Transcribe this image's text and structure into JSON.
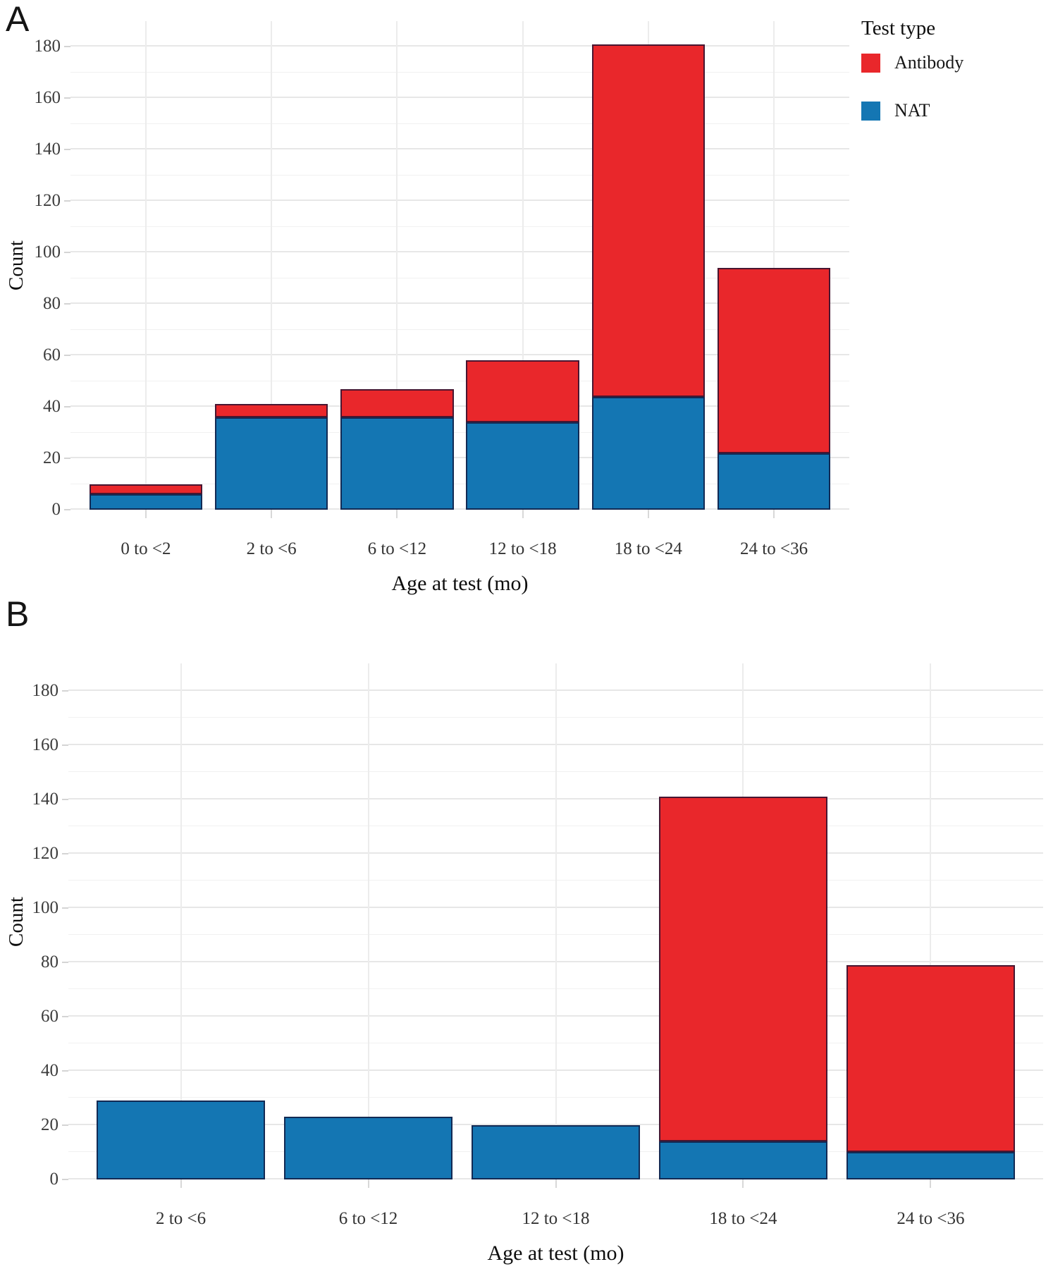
{
  "legend": {
    "title": "Test type",
    "items": [
      {
        "label": "Antibody",
        "color": "#e9272b"
      },
      {
        "label": "NAT",
        "color": "#1476b3"
      }
    ]
  },
  "chart_data": [
    {
      "type": "bar",
      "stacked": true,
      "panel_label": "A",
      "xlabel": "Age at test (mo)",
      "ylabel": "Count",
      "categories": [
        "0 to <2",
        "2 to <6",
        "6 to <12",
        "12 to <18",
        "18 to <24",
        "24 to <36"
      ],
      "series": [
        {
          "name": "NAT",
          "color": "#1476b3",
          "values": [
            6,
            36,
            36,
            34,
            44,
            22
          ]
        },
        {
          "name": "Antibody",
          "color": "#e9272b",
          "values": [
            4,
            5,
            11,
            24,
            137,
            72
          ]
        }
      ],
      "totals": [
        10,
        41,
        47,
        58,
        181,
        94
      ],
      "yticks": [
        0,
        20,
        40,
        60,
        80,
        100,
        120,
        140,
        160,
        180
      ],
      "ylim": [
        0,
        190
      ],
      "grid": true,
      "legend_position": "top-right"
    },
    {
      "type": "bar",
      "stacked": true,
      "panel_label": "B",
      "xlabel": "Age at test (mo)",
      "ylabel": "Count",
      "categories": [
        "2 to <6",
        "6 to <12",
        "12 to <18",
        "18 to <24",
        "24 to <36"
      ],
      "series": [
        {
          "name": "NAT",
          "color": "#1476b3",
          "values": [
            29,
            23,
            20,
            14,
            10
          ]
        },
        {
          "name": "Antibody",
          "color": "#e9272b",
          "values": [
            0,
            0,
            0,
            127,
            69
          ]
        }
      ],
      "totals": [
        29,
        23,
        20,
        141,
        79
      ],
      "yticks": [
        0,
        20,
        40,
        60,
        80,
        100,
        120,
        140,
        160,
        180
      ],
      "ylim": [
        0,
        190
      ],
      "grid": true,
      "legend_position": "none"
    }
  ]
}
